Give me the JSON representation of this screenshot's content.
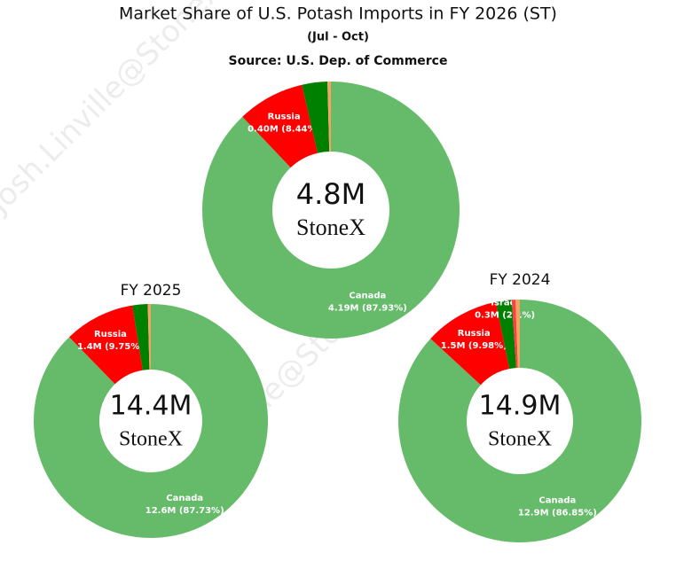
{
  "header": {
    "title": "Market Share of U.S. Potash Imports in FY 2026 (ST)",
    "subtitle": "(Jul - Oct)",
    "source": "Source: U.S. Dep. of Commerce"
  },
  "logo": "StoneX",
  "watermark": "Josh.Linville@StoneX.com",
  "chart_data": [
    {
      "type": "donut",
      "center_label": "4.8M",
      "categories": [
        "Canada",
        "Russia",
        null,
        null
      ],
      "values": [
        87.93,
        8.44,
        3.2,
        0.43
      ],
      "value_labels": [
        "4.19M (87.93%)",
        "0.40M (8.44%)",
        null,
        null
      ],
      "colors": [
        "#66bb6a",
        "#ff0000",
        "#008000",
        "#f4a460"
      ]
    },
    {
      "type": "donut",
      "title": "FY 2025",
      "center_label": "14.4M",
      "categories": [
        "Canada",
        "Russia",
        null,
        null
      ],
      "values": [
        87.73,
        9.75,
        2.1,
        0.42
      ],
      "value_labels": [
        "12.6M (87.73%)",
        "1.4M (9.75%)",
        null,
        null
      ],
      "colors": [
        "#66bb6a",
        "#ff0000",
        "#008000",
        "#f4a460"
      ]
    },
    {
      "type": "donut",
      "title": "FY 2024",
      "center_label": "14.9M",
      "categories": [
        "Canada",
        "Russia",
        "Israel",
        null,
        null
      ],
      "values": [
        86.85,
        9.98,
        2.1,
        0.5,
        0.57
      ],
      "value_labels": [
        "12.9M (86.85%)",
        "1.5M (9.98%)",
        "0.3M (2.1%)",
        null,
        null
      ],
      "colors": [
        "#66bb6a",
        "#ff0000",
        "#008000",
        "#ff4040",
        "#f4a460"
      ]
    }
  ]
}
